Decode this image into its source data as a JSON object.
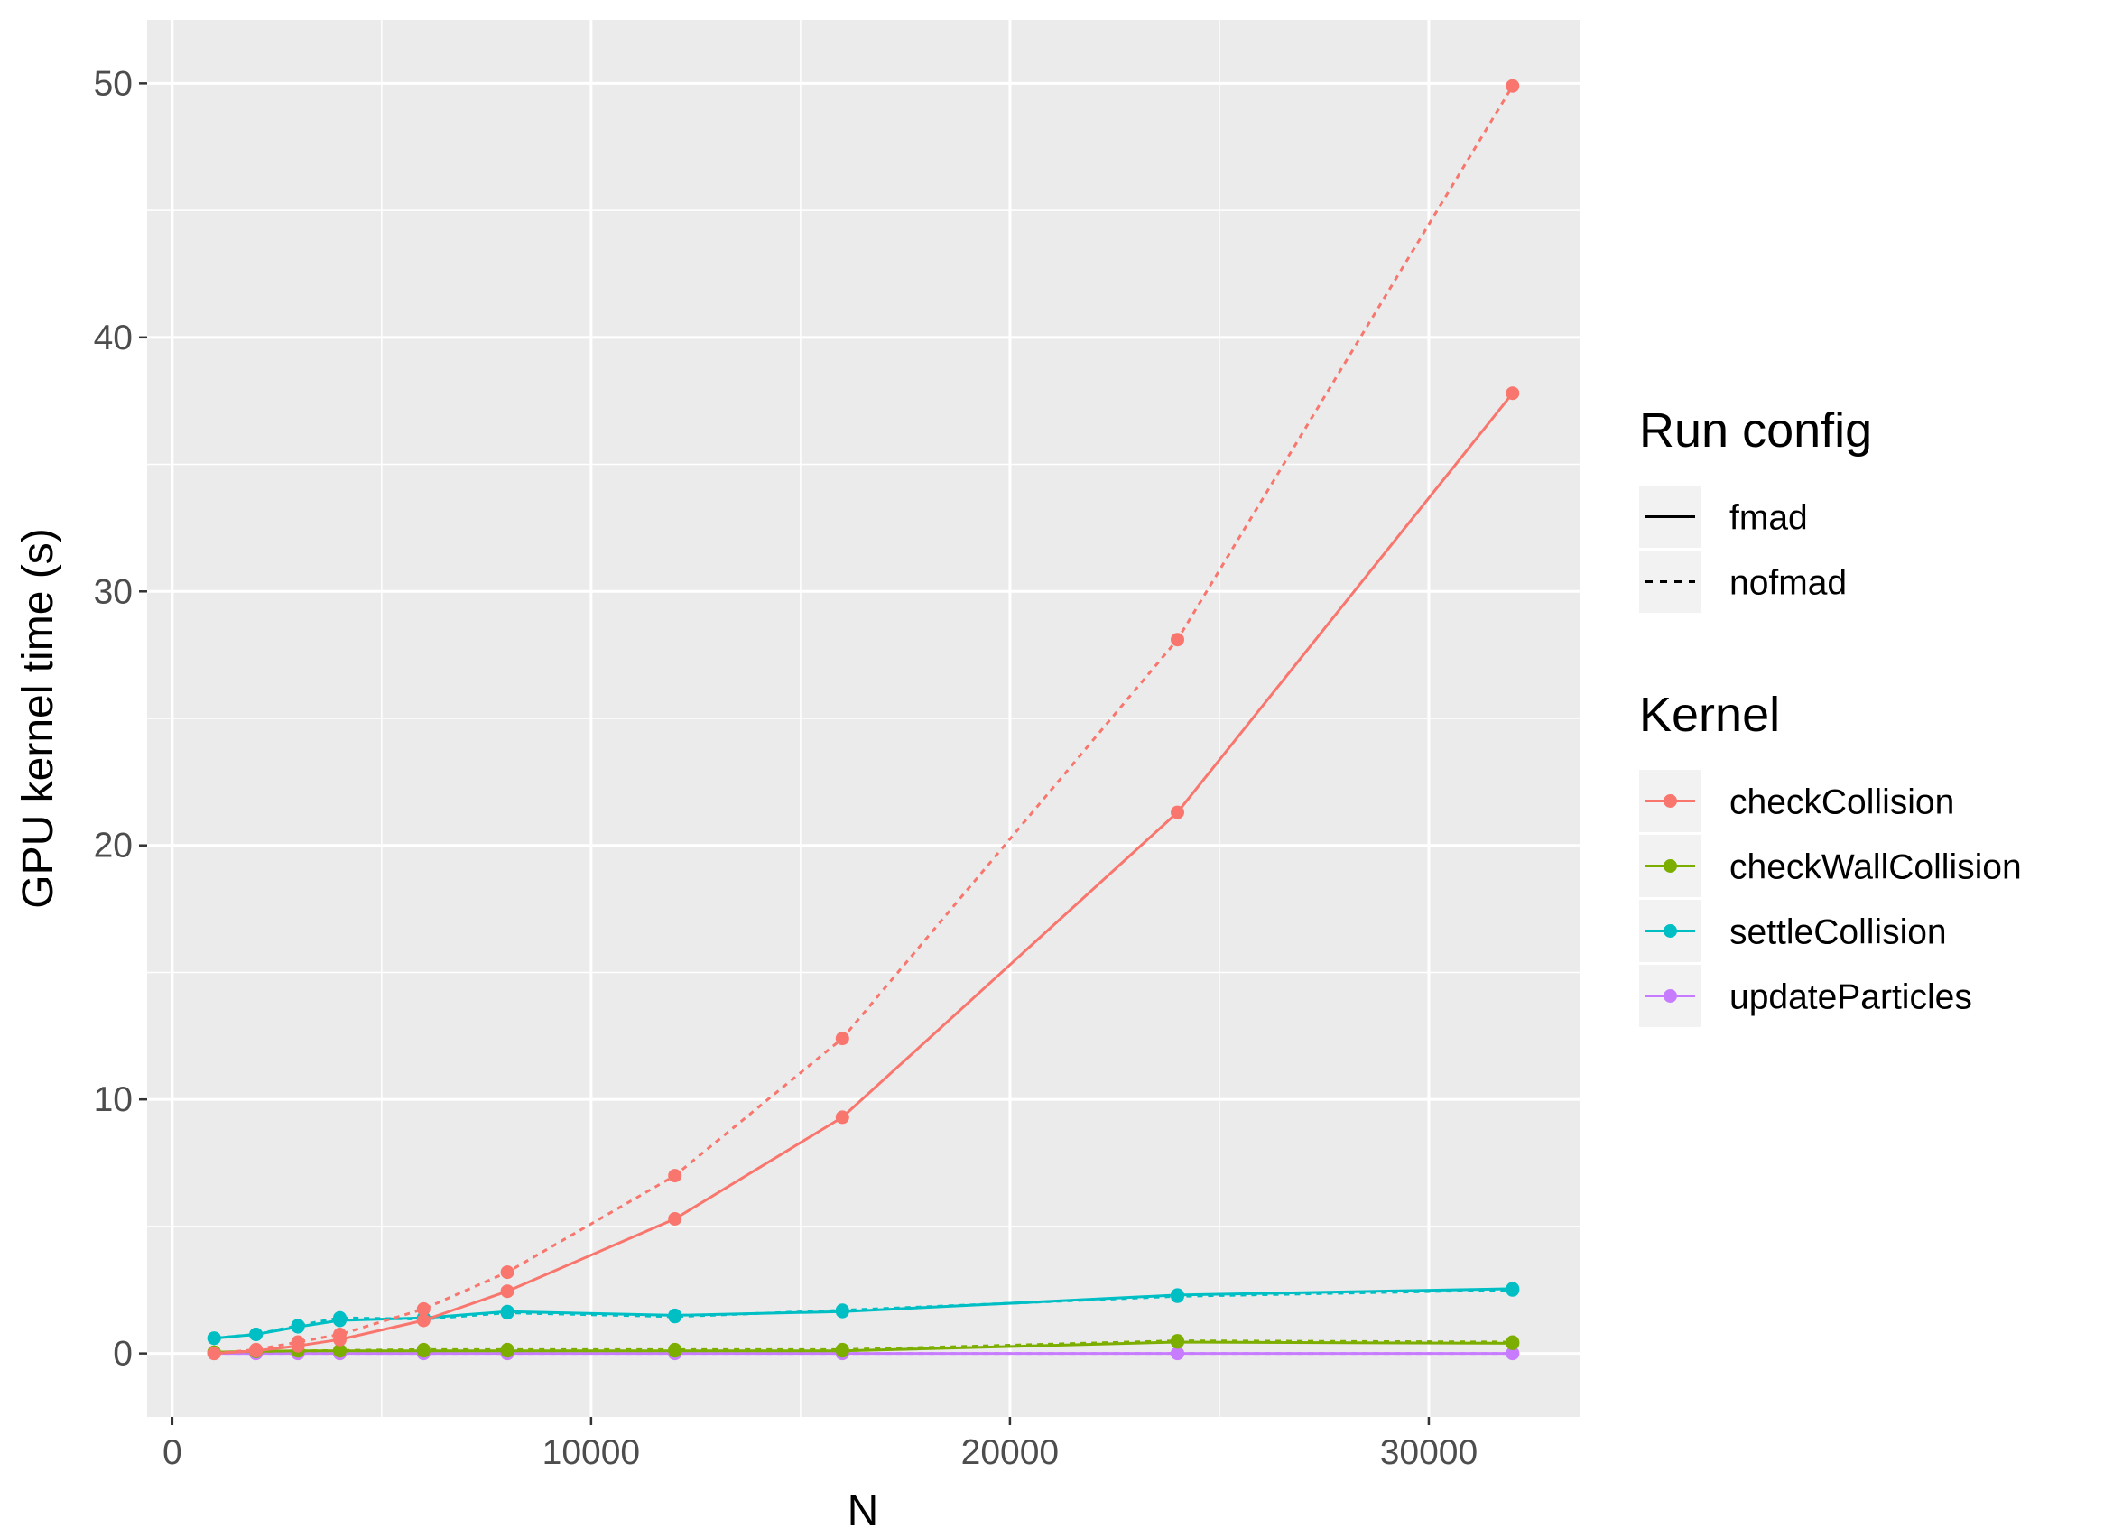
{
  "chart_data": {
    "type": "line",
    "xlabel": "N",
    "ylabel": "GPU kernel time (s)",
    "xlim": [
      -600,
      33600
    ],
    "ylim": [
      -2.5,
      52.5
    ],
    "x_ticks": [
      0,
      10000,
      20000,
      30000
    ],
    "y_ticks": [
      0,
      10,
      20,
      30,
      40,
      50
    ],
    "x": [
      1000,
      2000,
      3000,
      4000,
      6000,
      8000,
      12000,
      16000,
      24000,
      32000
    ],
    "grid": true,
    "legend_position": "right",
    "legends": [
      {
        "title": "Run config",
        "items": [
          {
            "label": "fmad",
            "linetype": "solid"
          },
          {
            "label": "nofmad",
            "linetype": "dashed"
          }
        ]
      },
      {
        "title": "Kernel",
        "items": [
          {
            "label": "checkCollision",
            "color": "#F8766D"
          },
          {
            "label": "checkWallCollision",
            "color": "#7CAE00"
          },
          {
            "label": "settleCollision",
            "color": "#00BFC4"
          },
          {
            "label": "updateParticles",
            "color": "#C77CFF"
          }
        ]
      }
    ],
    "series": [
      {
        "kernel": "updateParticles",
        "config": "fmad",
        "color": "#C77CFF",
        "linetype": "solid",
        "values": [
          0.0,
          0.0,
          0.0,
          0.0,
          0.0,
          0.0,
          0.0,
          0.0,
          0.0,
          0.0
        ]
      },
      {
        "kernel": "updateParticles",
        "config": "nofmad",
        "color": "#C77CFF",
        "linetype": "dashed",
        "values": [
          0.0,
          0.0,
          0.0,
          0.0,
          0.0,
          0.0,
          0.0,
          0.0,
          0.0,
          0.0
        ]
      },
      {
        "kernel": "checkWallCollision",
        "config": "fmad",
        "color": "#7CAE00",
        "linetype": "solid",
        "values": [
          0.05,
          0.08,
          0.1,
          0.1,
          0.1,
          0.1,
          0.1,
          0.1,
          0.45,
          0.4
        ]
      },
      {
        "kernel": "checkWallCollision",
        "config": "nofmad",
        "color": "#7CAE00",
        "linetype": "dashed",
        "values": [
          0.05,
          0.08,
          0.1,
          0.12,
          0.15,
          0.15,
          0.15,
          0.15,
          0.5,
          0.45
        ]
      },
      {
        "kernel": "settleCollision",
        "config": "fmad",
        "color": "#00BFC4",
        "linetype": "solid",
        "values": [
          0.6,
          0.75,
          1.05,
          1.3,
          1.4,
          1.65,
          1.5,
          1.65,
          2.3,
          2.55
        ]
      },
      {
        "kernel": "settleCollision",
        "config": "nofmad",
        "color": "#00BFC4",
        "linetype": "dashed",
        "values": [
          0.6,
          0.75,
          1.1,
          1.4,
          1.35,
          1.6,
          1.45,
          1.7,
          2.25,
          2.5
        ]
      },
      {
        "kernel": "checkCollision",
        "config": "fmad",
        "color": "#F8766D",
        "linetype": "solid",
        "values": [
          0.0,
          0.1,
          0.3,
          0.55,
          1.3,
          2.45,
          5.3,
          9.3,
          21.3,
          37.8
        ]
      },
      {
        "kernel": "checkCollision",
        "config": "nofmad",
        "color": "#F8766D",
        "linetype": "dashed",
        "values": [
          0.0,
          0.15,
          0.45,
          0.75,
          1.75,
          3.2,
          7.0,
          12.4,
          28.1,
          49.9
        ]
      }
    ]
  }
}
